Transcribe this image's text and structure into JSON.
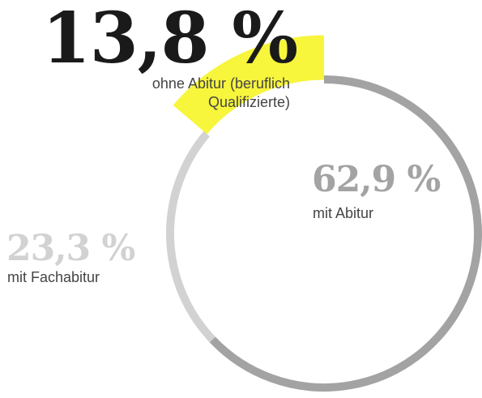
{
  "chart_data": {
    "type": "donut",
    "categories": [
      "mit Abitur",
      "mit Fachabitur",
      "ohne Abitur (beruflich Qualifizierte)"
    ],
    "values": [
      62.9,
      23.3,
      13.8
    ],
    "value_labels": [
      "62,9 %",
      "23,3 %",
      "13,8 %"
    ],
    "colors": [
      "#a3a3a3",
      "#d2d2d2",
      "#f7f53c"
    ]
  }
}
